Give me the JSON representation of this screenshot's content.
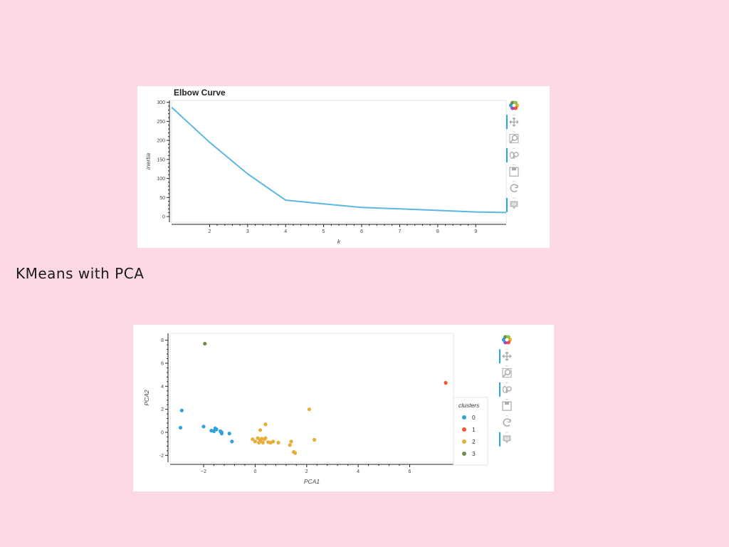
{
  "slide": {
    "heading": "KMeans with PCA"
  },
  "toolbar": {
    "tools": [
      "bokeh-logo-icon",
      "pan-icon",
      "box-zoom-icon",
      "wheel-zoom-icon",
      "save-icon",
      "reset-icon",
      "hover-icon"
    ],
    "colors": {
      "active": "#26aae1",
      "icon": "#aaaaaa"
    }
  },
  "chart_data": [
    {
      "type": "line",
      "title": "Elbow Curve",
      "xlabel": "k",
      "ylabel": "inertia",
      "xlim": [
        1,
        9.8
      ],
      "ylim": [
        -15,
        305
      ],
      "xticks": [
        2,
        3,
        4,
        5,
        6,
        7,
        8,
        9
      ],
      "yticks": [
        0,
        50,
        100,
        150,
        200,
        250,
        300
      ],
      "series": [
        {
          "color": "#5cb6e2",
          "x": [
            1,
            2,
            3,
            4,
            5,
            6,
            7,
            8,
            9,
            10
          ],
          "y": [
            287,
            195,
            112,
            43,
            33,
            24,
            20,
            16,
            12,
            10
          ]
        }
      ]
    },
    {
      "type": "scatter",
      "title": "",
      "xlabel": "PCA1",
      "ylabel": "PCA2",
      "xlim": [
        -3.3,
        7.7
      ],
      "ylim": [
        -2.6,
        8.6
      ],
      "xticks": [
        -2,
        0,
        2,
        4,
        6
      ],
      "yticks": [
        -2,
        0,
        2,
        4,
        6,
        8
      ],
      "legend": {
        "title": "clusters",
        "position": "right"
      },
      "series": [
        {
          "name": "0",
          "color": "#30a2da",
          "points": [
            [
              -2.9,
              0.4
            ],
            [
              -2.85,
              1.9
            ],
            [
              -2.0,
              0.5
            ],
            [
              -1.7,
              0.15
            ],
            [
              -1.6,
              0.1
            ],
            [
              -1.55,
              0.35
            ],
            [
              -1.5,
              0.25
            ],
            [
              -1.35,
              0.1
            ],
            [
              -1.3,
              -0.1
            ],
            [
              -1.3,
              0.0
            ],
            [
              -1.0,
              -0.1
            ],
            [
              -0.9,
              -0.8
            ]
          ]
        },
        {
          "name": "1",
          "color": "#fc4f30",
          "points": [
            [
              7.4,
              4.3
            ]
          ]
        },
        {
          "name": "2",
          "color": "#e5ae38",
          "points": [
            [
              -0.1,
              -0.6
            ],
            [
              0.0,
              -0.8
            ],
            [
              0.1,
              -0.5
            ],
            [
              0.15,
              -0.9
            ],
            [
              0.2,
              -0.7
            ],
            [
              0.2,
              0.2
            ],
            [
              0.25,
              -0.55
            ],
            [
              0.3,
              -0.9
            ],
            [
              0.35,
              -0.6
            ],
            [
              0.4,
              -0.5
            ],
            [
              0.4,
              0.7
            ],
            [
              0.5,
              -0.85
            ],
            [
              0.6,
              -0.9
            ],
            [
              0.7,
              -0.8
            ],
            [
              0.9,
              -0.9
            ],
            [
              1.35,
              -1.1
            ],
            [
              1.4,
              -0.8
            ],
            [
              1.5,
              -1.7
            ],
            [
              1.55,
              -1.8
            ],
            [
              2.1,
              2.0
            ],
            [
              2.3,
              -0.65
            ]
          ]
        },
        {
          "name": "3",
          "color": "#6d904f",
          "points": [
            [
              -1.95,
              7.7
            ]
          ]
        }
      ]
    }
  ]
}
